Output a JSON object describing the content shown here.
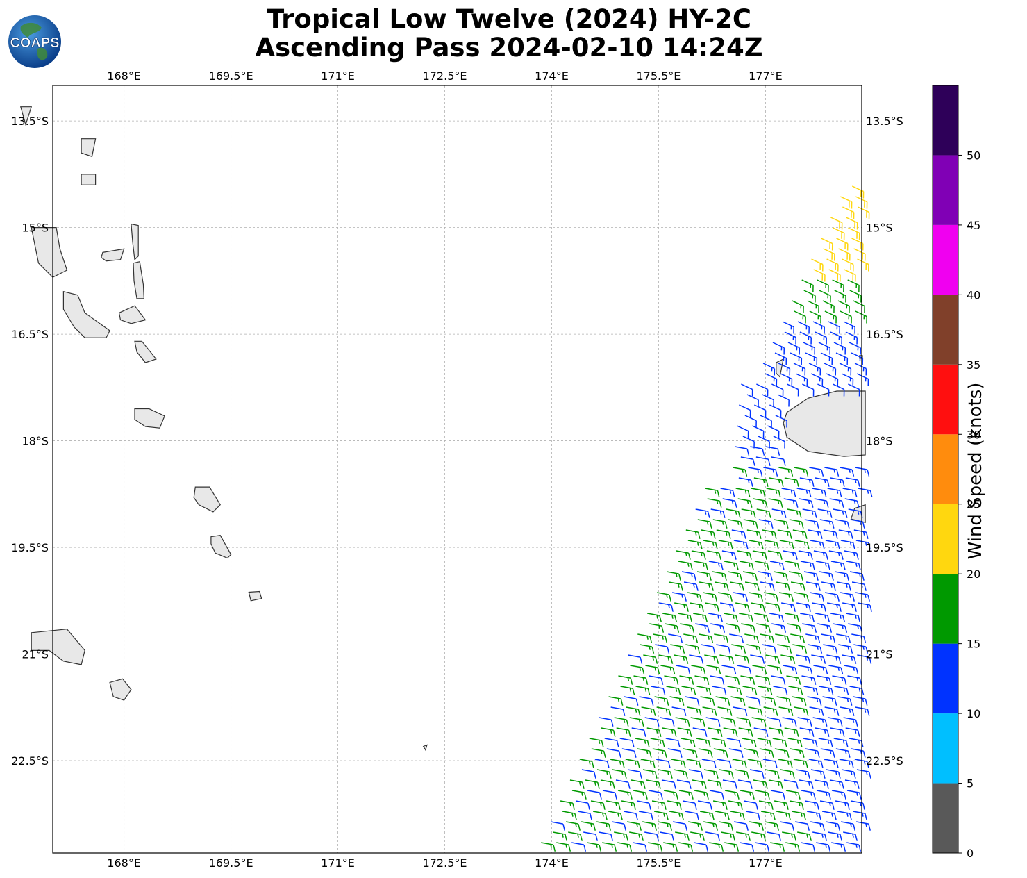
{
  "title": {
    "line1": "Tropical Low Twelve (2024) HY-2C",
    "line2": "Ascending Pass 2024-02-10 14:24Z"
  },
  "logo": {
    "text": "COAPS",
    "icon": "globe-logo-icon"
  },
  "map": {
    "lon_ticks": [
      "168°E",
      "169.5°E",
      "171°E",
      "172.5°E",
      "174°E",
      "175.5°E",
      "177°E"
    ],
    "lon_values": [
      168,
      169.5,
      171,
      172.5,
      174,
      175.5,
      177
    ],
    "lat_ticks": [
      "13.5°S",
      "15°S",
      "16.5°S",
      "18°S",
      "19.5°S",
      "21°S",
      "22.5°S"
    ],
    "lat_values": [
      -13.5,
      -15,
      -16.5,
      -18,
      -19.5,
      -21,
      -22.5
    ],
    "lon_range": [
      167.0,
      178.35
    ],
    "lat_range": [
      -23.8,
      -13.0
    ],
    "gridlines": true,
    "land_color": "#e8e8e8",
    "coast_color": "#333333"
  },
  "wind_speed_colorbar": {
    "label": "Wind Speed (knots)",
    "ticks": [
      "0",
      "5",
      "10",
      "15",
      "20",
      "25",
      "30",
      "35",
      "40",
      "45",
      "50"
    ],
    "bins": [
      {
        "from": 0,
        "to": 5,
        "color": "#595959"
      },
      {
        "from": 5,
        "to": 10,
        "color": "#00bfff"
      },
      {
        "from": 10,
        "to": 15,
        "color": "#0033ff"
      },
      {
        "from": 15,
        "to": 20,
        "color": "#009900"
      },
      {
        "from": 20,
        "to": 25,
        "color": "#ffd70f"
      },
      {
        "from": 25,
        "to": 30,
        "color": "#ff8c0d"
      },
      {
        "from": 30,
        "to": 35,
        "color": "#ff0f0f"
      },
      {
        "from": 35,
        "to": 40,
        "color": "#80402a"
      },
      {
        "from": 40,
        "to": 45,
        "color": "#f000f0"
      },
      {
        "from": 45,
        "to": 50,
        "color": "#8000b5"
      },
      {
        "from": 50,
        "to": 55,
        "color": "#2e0059"
      }
    ]
  }
}
